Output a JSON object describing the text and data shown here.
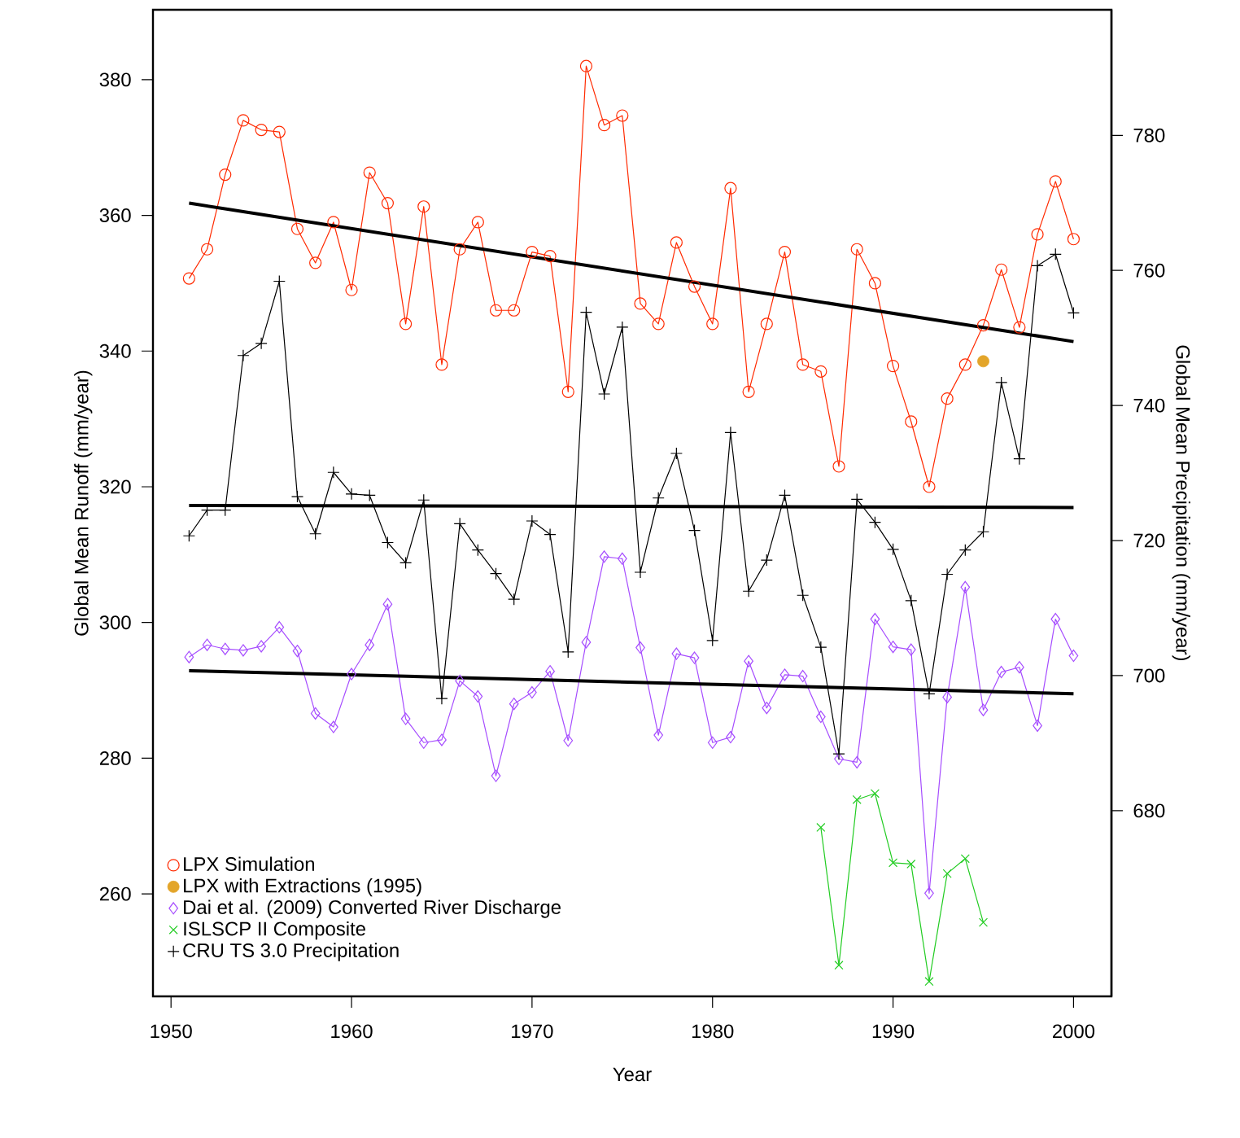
{
  "chart_data": {
    "type": "line",
    "xlabel": "Year",
    "ylabel": "Global Mean Runoff (mm/year)",
    "y2label": "Global Mean Precipitation (mm/year)",
    "xlim": [
      1949,
      2002.1
    ],
    "xticks": [
      1950,
      1960,
      1970,
      1980,
      1990,
      2000
    ],
    "ylim": [
      244.9,
      390.3
    ],
    "yticks": [
      260,
      280,
      300,
      320,
      340,
      360,
      380
    ],
    "y2lim": [
      652.5,
      798.6
    ],
    "y2ticks": [
      680,
      700,
      720,
      740,
      760,
      780
    ],
    "grid": false,
    "legend": "bottom left",
    "x": [
      1951,
      1952,
      1953,
      1954,
      1955,
      1956,
      1957,
      1958,
      1959,
      1960,
      1961,
      1962,
      1963,
      1964,
      1965,
      1966,
      1967,
      1968,
      1969,
      1970,
      1971,
      1972,
      1973,
      1974,
      1975,
      1976,
      1977,
      1978,
      1979,
      1980,
      1981,
      1982,
      1983,
      1984,
      1985,
      1986,
      1987,
      1988,
      1989,
      1990,
      1991,
      1992,
      1993,
      1994,
      1995,
      1996,
      1997,
      1998,
      1999,
      2000
    ],
    "series": [
      {
        "name": "LPX Simulation",
        "marker": "circle",
        "color": "#ff2a00",
        "values": [
          350.7,
          355,
          366,
          374,
          372.6,
          372.3,
          358,
          353,
          359,
          349,
          366.3,
          361.8,
          344,
          361.3,
          338,
          355,
          359,
          346,
          346,
          354.6,
          354,
          334,
          382,
          373.3,
          374.7,
          347,
          344,
          356,
          349.5,
          344,
          364,
          334,
          344,
          354.6,
          338,
          337,
          323,
          355,
          350,
          337.8,
          329.6,
          320,
          333,
          338,
          343.8,
          352,
          343.5,
          357.2,
          365,
          356.5
        ]
      },
      {
        "name": "LPX with Extractions (1995)",
        "type": "scatter",
        "marker": "circle",
        "color": "#e3a52a",
        "x": [
          1995
        ],
        "values": [
          338.5
        ]
      },
      {
        "name": "Dai et al. (2009) Converted River Discharge",
        "marker": "diamond",
        "color": "#a64dff",
        "values": [
          294.9,
          296.7,
          296.1,
          295.9,
          296.5,
          299.3,
          295.8,
          286.6,
          284.6,
          292.4,
          296.7,
          302.7,
          285.8,
          282.3,
          282.7,
          291.4,
          289.1,
          277.4,
          288,
          289.7,
          292.8,
          282.6,
          297.1,
          309.7,
          309.4,
          296.3,
          283.4,
          295.4,
          294.8,
          282.3,
          283.1,
          294.3,
          287.4,
          292.3,
          292.1,
          286.1,
          279.9,
          279.4,
          300.5,
          296.4,
          296,
          260.1,
          289,
          305.2,
          287.1,
          292.7,
          293.4,
          284.8,
          300.5,
          295.1
        ]
      },
      {
        "name": "ISLSCP II Composite",
        "marker": "cross",
        "color": "#22cc22",
        "x": [
          1986,
          1987,
          1988,
          1989,
          1990,
          1991,
          1992,
          1993,
          1994,
          1995
        ],
        "values": [
          269.8,
          249.5,
          273.9,
          274.8,
          264.6,
          264.4,
          247.1,
          263,
          265.2,
          255.8
        ]
      },
      {
        "name": "CRU TS 3.0 Precipitation",
        "marker": "plus",
        "color": "#000000",
        "axis": "y2",
        "values": [
          720.7,
          724.5,
          724.5,
          747.4,
          749.2,
          758.4,
          726.5,
          721,
          730.1,
          726.9,
          726.7,
          719.7,
          716.7,
          726,
          696.6,
          722.5,
          718.6,
          715.1,
          711.3,
          722.9,
          720.9,
          703.5,
          753.8,
          741.7,
          751.6,
          715.3,
          726.3,
          732.9,
          721.5,
          705.2,
          736,
          712.5,
          717.1,
          726.7,
          711.9,
          704.2,
          688.4,
          726.1,
          722.7,
          718.7,
          711.1,
          697.3,
          715,
          718.6,
          721.3,
          743.4,
          732.1,
          760.7,
          762.4,
          753.7
        ]
      },
      {
        "type": "line",
        "marker": "none",
        "line_style": "solid",
        "color": "#000000",
        "x": [
          1951,
          2000
        ],
        "values": [
          361.8,
          341.4
        ]
      },
      {
        "type": "line",
        "marker": "none",
        "line_style": "solid",
        "color": "#000000",
        "x": [
          1951,
          2000
        ],
        "values": [
          292.9,
          289.5
        ]
      },
      {
        "type": "line",
        "marker": "none",
        "line_style": "solid",
        "color": "#000000",
        "axis": "y2",
        "x": [
          1951,
          2000
        ],
        "values": [
          725.2,
          724.9
        ]
      }
    ]
  }
}
